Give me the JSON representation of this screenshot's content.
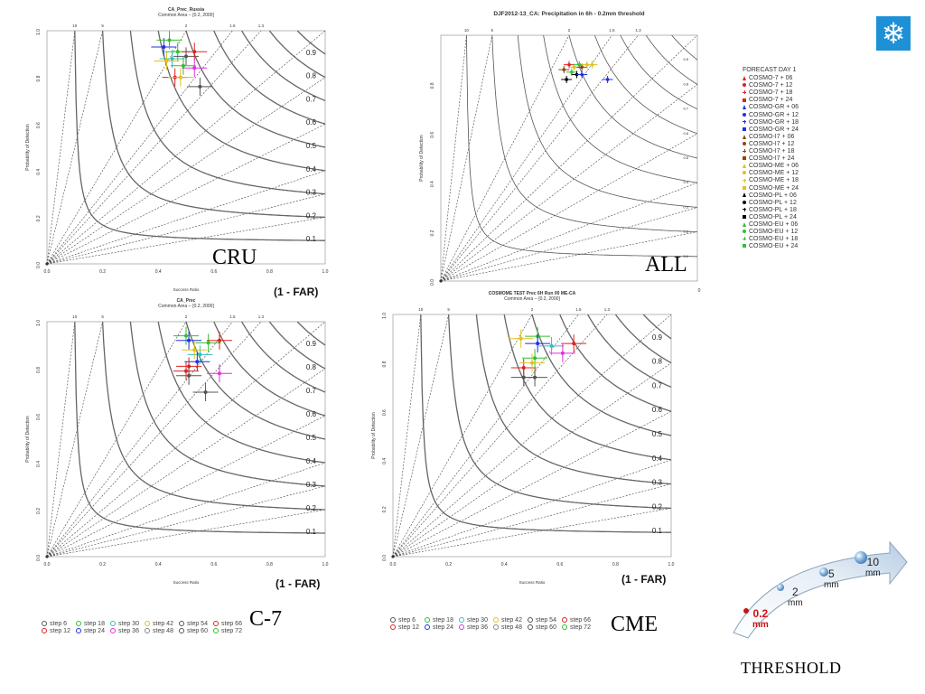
{
  "page": {
    "icon": "snowflake-icon",
    "threshold_title": "THRESHOLD",
    "threshold_levels": [
      {
        "value": "0.2",
        "unit": "mm",
        "color": "#d01010"
      },
      {
        "value": "2",
        "unit": "mm",
        "color": "#222222"
      },
      {
        "value": "5",
        "unit": "mm",
        "color": "#222222"
      },
      {
        "value": "10",
        "unit": "mm",
        "color": "#222222"
      }
    ],
    "bottom_legend": [
      "step 6",
      "step 12",
      "step 18",
      "step 24",
      "step 30",
      "step 36",
      "step 42",
      "step 48",
      "step 54",
      "step 60",
      "step 66",
      "step 72"
    ],
    "bottom_legend_colors": [
      "#555555",
      "#e02020",
      "#30c030",
      "#2030e0",
      "#30c0c0",
      "#e030e0",
      "#e0c020",
      "#888888",
      "#555555",
      "#555555",
      "#e02020",
      "#30c030"
    ],
    "forecast_legend_title": "FORECAST DAY 1",
    "forecast_legend": [
      {
        "label": "COSMO-7 + 06",
        "color": "#e02020",
        "shape": "triangle"
      },
      {
        "label": "COSMO-7 + 12",
        "color": "#e02020",
        "shape": "circle"
      },
      {
        "label": "COSMO-7 + 18",
        "color": "#e02020",
        "shape": "plus"
      },
      {
        "label": "COSMO-7 + 24",
        "color": "#e02020",
        "shape": "square"
      },
      {
        "label": "COSMO-GR + 06",
        "color": "#2030e0",
        "shape": "triangle"
      },
      {
        "label": "COSMO-GR + 12",
        "color": "#2030e0",
        "shape": "circle"
      },
      {
        "label": "COSMO-GR + 18",
        "color": "#2030e0",
        "shape": "plus"
      },
      {
        "label": "COSMO-GR + 24",
        "color": "#2030e0",
        "shape": "square"
      },
      {
        "label": "COSMO-I7 + 06",
        "color": "#8b4513",
        "shape": "triangle"
      },
      {
        "label": "COSMO-I7 + 12",
        "color": "#8b4513",
        "shape": "circle"
      },
      {
        "label": "COSMO-I7 + 18",
        "color": "#8b4513",
        "shape": "plus"
      },
      {
        "label": "COSMO-I7 + 24",
        "color": "#8b4513",
        "shape": "square"
      },
      {
        "label": "COSMO-ME + 06",
        "color": "#e0c020",
        "shape": "triangle"
      },
      {
        "label": "COSMO-ME + 12",
        "color": "#e0c020",
        "shape": "circle"
      },
      {
        "label": "COSMO-ME + 18",
        "color": "#e0c020",
        "shape": "plus"
      },
      {
        "label": "COSMO-ME + 24",
        "color": "#e0c020",
        "shape": "square"
      },
      {
        "label": "COSMO-PL + 06",
        "color": "#000000",
        "shape": "triangle"
      },
      {
        "label": "COSMO-PL + 12",
        "color": "#000000",
        "shape": "circle"
      },
      {
        "label": "COSMO-PL + 18",
        "color": "#000000",
        "shape": "plus"
      },
      {
        "label": "COSMO-PL + 24",
        "color": "#000000",
        "shape": "square"
      },
      {
        "label": "COSMO-EU + 06",
        "color": "#30c030",
        "shape": "triangle"
      },
      {
        "label": "COSMO-EU + 12",
        "color": "#30c030",
        "shape": "circle"
      },
      {
        "label": "COSMO-EU + 18",
        "color": "#30c030",
        "shape": "plus"
      },
      {
        "label": "COSMO-EU + 24",
        "color": "#30c030",
        "shape": "square"
      }
    ]
  },
  "chart_data": [
    {
      "type": "scatter",
      "id": "cru",
      "panel_label": "CRU",
      "title": "CA_Prec_Russia",
      "subtitle": "Common Area -- [0.2, 2000]",
      "xlabel": "Success Ratio",
      "ylabel": "Probability of Detection",
      "far_label": "(1 - FAR)",
      "xlim": [
        0,
        1
      ],
      "ylim": [
        0,
        1
      ],
      "x_ticks": [
        "0.0",
        "0.2",
        "0.4",
        "0.6",
        "0.8",
        "1.0"
      ],
      "y_ticks": [
        "0.0",
        "0.2",
        "0.4",
        "0.6",
        "0.8",
        "1.0"
      ],
      "csi_labels": [
        "0.1",
        "0.2",
        "0.3",
        "0.4",
        "0.5",
        "0.6",
        "0.7",
        "0.8",
        "0.9"
      ],
      "bias_labels": [
        "10",
        "5",
        "2",
        "1.5",
        "1.3"
      ],
      "points": [
        {
          "x": 0.42,
          "y": 0.93,
          "color": "#2030e0"
        },
        {
          "x": 0.44,
          "y": 0.96,
          "color": "#30c030"
        },
        {
          "x": 0.47,
          "y": 0.91,
          "color": "#30c030"
        },
        {
          "x": 0.45,
          "y": 0.88,
          "color": "#30c0c0"
        },
        {
          "x": 0.5,
          "y": 0.89,
          "color": "#555555"
        },
        {
          "x": 0.53,
          "y": 0.91,
          "color": "#e02020"
        },
        {
          "x": 0.49,
          "y": 0.85,
          "color": "#30c030"
        },
        {
          "x": 0.53,
          "y": 0.84,
          "color": "#e030e0"
        },
        {
          "x": 0.46,
          "y": 0.8,
          "color": "#e02020"
        },
        {
          "x": 0.48,
          "y": 0.8,
          "color": "#e0c020"
        },
        {
          "x": 0.55,
          "y": 0.76,
          "color": "#555555"
        },
        {
          "x": 0.43,
          "y": 0.87,
          "color": "#e0c020"
        }
      ]
    },
    {
      "type": "scatter",
      "id": "all",
      "panel_label": "ALL",
      "title": "DJF2012-13_CA: Precipitation in 6h - 0.2mm threshold",
      "subtitle": "",
      "xlabel": "",
      "ylabel": "Probability of Detection",
      "far_label": "",
      "xlim": [
        0,
        1
      ],
      "ylim": [
        0,
        1
      ],
      "x_ticks": [
        "0"
      ],
      "y_ticks": [
        "0.0",
        "0.2",
        "0.4",
        "0.6",
        "0.8"
      ],
      "csi_labels": [
        "0.1",
        "0.2",
        "0.3",
        "0.4",
        "0.5",
        "0.6",
        "0.7",
        "0.8",
        "0.9"
      ],
      "bias_labels": [
        "10",
        "5",
        "2",
        "1.5",
        "1.3"
      ],
      "points": [
        {
          "x": 0.5,
          "y": 0.88,
          "color": "#e02020"
        },
        {
          "x": 0.52,
          "y": 0.87,
          "color": "#e0c020"
        },
        {
          "x": 0.54,
          "y": 0.88,
          "color": "#30c030"
        },
        {
          "x": 0.55,
          "y": 0.87,
          "color": "#8b4513"
        },
        {
          "x": 0.57,
          "y": 0.88,
          "color": "#e0c020"
        },
        {
          "x": 0.51,
          "y": 0.85,
          "color": "#30c030"
        },
        {
          "x": 0.53,
          "y": 0.84,
          "color": "#000000"
        },
        {
          "x": 0.49,
          "y": 0.82,
          "color": "#000000"
        },
        {
          "x": 0.55,
          "y": 0.84,
          "color": "#2030e0"
        },
        {
          "x": 0.48,
          "y": 0.86,
          "color": "#8b4513"
        },
        {
          "x": 0.59,
          "y": 0.88,
          "color": "#e0c020"
        },
        {
          "x": 0.65,
          "y": 0.82,
          "color": "#2030e0"
        }
      ]
    },
    {
      "type": "scatter",
      "id": "c7",
      "panel_label": "C-7",
      "title": "CA_Prec",
      "subtitle": "Common Area -- [0.2, 2000]",
      "xlabel": "Success Ratio",
      "ylabel": "Probability of Detection",
      "far_label": "(1 - FAR)",
      "xlim": [
        0,
        1
      ],
      "ylim": [
        0,
        1
      ],
      "x_ticks": [
        "0.0",
        "0.2",
        "0.4",
        "0.6",
        "0.8",
        "1.0"
      ],
      "y_ticks": [
        "0.0",
        "0.2",
        "0.4",
        "0.6",
        "0.8",
        "1.0"
      ],
      "csi_labels": [
        "0.1",
        "0.2",
        "0.3",
        "0.4",
        "0.5",
        "0.6",
        "0.7",
        "0.8",
        "0.9"
      ],
      "bias_labels": [
        "10",
        "5",
        "2",
        "1.5",
        "1.3"
      ],
      "points": [
        {
          "x": 0.5,
          "y": 0.94,
          "color": "#30c030"
        },
        {
          "x": 0.51,
          "y": 0.92,
          "color": "#2030e0"
        },
        {
          "x": 0.58,
          "y": 0.91,
          "color": "#30c030"
        },
        {
          "x": 0.62,
          "y": 0.92,
          "color": "#e02020"
        },
        {
          "x": 0.55,
          "y": 0.86,
          "color": "#30c0c0"
        },
        {
          "x": 0.54,
          "y": 0.83,
          "color": "#2030e0"
        },
        {
          "x": 0.51,
          "y": 0.81,
          "color": "#e02020"
        },
        {
          "x": 0.5,
          "y": 0.79,
          "color": "#e02020"
        },
        {
          "x": 0.62,
          "y": 0.78,
          "color": "#e030e0"
        },
        {
          "x": 0.51,
          "y": 0.77,
          "color": "#555555"
        },
        {
          "x": 0.57,
          "y": 0.7,
          "color": "#555555"
        },
        {
          "x": 0.53,
          "y": 0.88,
          "color": "#e0c020"
        }
      ]
    },
    {
      "type": "scatter",
      "id": "cme",
      "panel_label": "CME",
      "title": "COSMOME TEST Prec 6H Run 00 ME-CA",
      "subtitle": "Common Area -- [0.2, 2000]",
      "xlabel": "Success Ratio",
      "ylabel": "Probability of Detection",
      "far_label": "(1 - FAR)",
      "xlim": [
        0,
        1
      ],
      "ylim": [
        0,
        1
      ],
      "x_ticks": [
        "0.0",
        "0.2",
        "0.4",
        "0.6",
        "0.8",
        "1.0"
      ],
      "y_ticks": [
        "0.0",
        "0.2",
        "0.4",
        "0.6",
        "0.8",
        "1.0"
      ],
      "csi_labels": [
        "0.1",
        "0.2",
        "0.3",
        "0.4",
        "0.5",
        "0.6",
        "0.7",
        "0.8",
        "0.9"
      ],
      "bias_labels": [
        "10",
        "5",
        "2",
        "1.5",
        "1.3"
      ],
      "points": [
        {
          "x": 0.46,
          "y": 0.9,
          "color": "#e0c020"
        },
        {
          "x": 0.52,
          "y": 0.91,
          "color": "#30c030"
        },
        {
          "x": 0.52,
          "y": 0.88,
          "color": "#2030e0"
        },
        {
          "x": 0.57,
          "y": 0.87,
          "color": "#30c0c0"
        },
        {
          "x": 0.65,
          "y": 0.88,
          "color": "#e02020"
        },
        {
          "x": 0.51,
          "y": 0.82,
          "color": "#30c030"
        },
        {
          "x": 0.61,
          "y": 0.84,
          "color": "#e030e0"
        },
        {
          "x": 0.47,
          "y": 0.78,
          "color": "#e02020"
        },
        {
          "x": 0.47,
          "y": 0.74,
          "color": "#555555"
        },
        {
          "x": 0.51,
          "y": 0.74,
          "color": "#555555"
        },
        {
          "x": 0.5,
          "y": 0.8,
          "color": "#e0c020"
        }
      ]
    }
  ]
}
